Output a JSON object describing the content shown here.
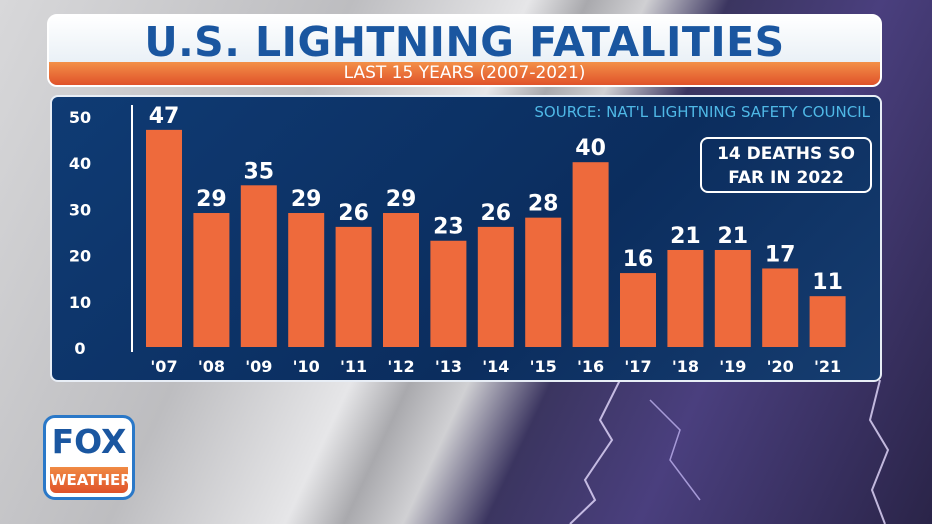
{
  "header": {
    "title": "U.S. LIGHTNING FATALITIES",
    "subtitle": "LAST 15 YEARS (2007-2021)"
  },
  "source": "SOURCE: NAT'L LIGHTNING SAFETY COUNCIL",
  "note": {
    "line1": "14 DEATHS SO",
    "line2": "FAR IN 2022"
  },
  "logo": {
    "top": "FOX",
    "bottom": "WEATHER"
  },
  "colors": {
    "bar": "#ee6a3c",
    "panel": "#0f3b74",
    "title": "#1a56a0",
    "source": "#4fb8e6"
  },
  "chart_data": {
    "type": "bar",
    "title": "U.S. LIGHTNING FATALITIES",
    "subtitle": "LAST 15 YEARS (2007-2021)",
    "categories": [
      "'07",
      "'08",
      "'09",
      "'10",
      "'11",
      "'12",
      "'13",
      "'14",
      "'15",
      "'16",
      "'17",
      "'18",
      "'19",
      "'20",
      "'21"
    ],
    "values": [
      47,
      29,
      35,
      29,
      26,
      29,
      23,
      26,
      28,
      40,
      16,
      21,
      21,
      17,
      11
    ],
    "yticks": [
      0,
      10,
      20,
      30,
      40,
      50
    ],
    "ylim": [
      0,
      50
    ],
    "grid": false,
    "data_labels": true
  }
}
